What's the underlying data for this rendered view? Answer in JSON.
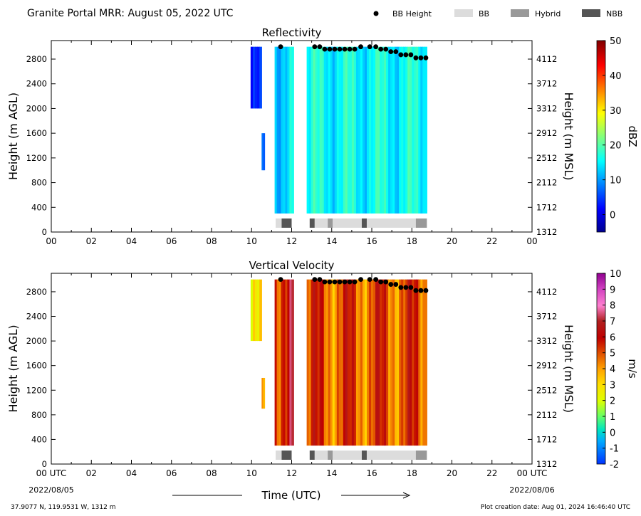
{
  "figure": {
    "title": "Granite Portal MRR:  August 05, 2022 UTC",
    "location": "37.9077 N, 119.9531 W, 1312 m",
    "creation_date": "Plot creation date: Aug 01, 2024 16:46:40 UTC",
    "xlabel": "Time (UTC)",
    "start_date": "2022/08/05",
    "end_date": "2022/08/06"
  },
  "legend": [
    {
      "label": "BB Height",
      "kind": "dot",
      "color": "#000000"
    },
    {
      "label": "BB",
      "kind": "box",
      "color": "#dcdcdc"
    },
    {
      "label": "Hybrid",
      "kind": "box",
      "color": "#999999"
    },
    {
      "label": "NBB",
      "kind": "box",
      "color": "#555555"
    }
  ],
  "chart_data": [
    {
      "type": "heatmap",
      "title": "Reflectivity",
      "xlabel": "",
      "ylabel": "Height (m AGL)",
      "ylabel_right": "Height (m MSL)",
      "xlim": [
        0,
        24
      ],
      "ylim": [
        0,
        3100
      ],
      "x_ticks": [
        "00",
        "02",
        "04",
        "06",
        "08",
        "10",
        "12",
        "14",
        "16",
        "18",
        "20",
        "22",
        "00"
      ],
      "y_ticks": [
        0,
        400,
        800,
        1200,
        1600,
        2000,
        2400,
        2800
      ],
      "y_ticks_right": [
        1312,
        1712,
        2112,
        2512,
        2912,
        3312,
        3712,
        4112
      ],
      "colorbar": {
        "label": "dBZ",
        "min": -5,
        "max": 50,
        "ticks": [
          0,
          10,
          20,
          30,
          40,
          50
        ],
        "colormap": "jet"
      },
      "bb_height_points": [
        [
          11.45,
          3000
        ],
        [
          13.15,
          3000
        ],
        [
          13.4,
          3000
        ],
        [
          13.65,
          2960
        ],
        [
          13.9,
          2960
        ],
        [
          14.15,
          2960
        ],
        [
          14.4,
          2960
        ],
        [
          14.65,
          2960
        ],
        [
          14.9,
          2960
        ],
        [
          15.15,
          2960
        ],
        [
          15.45,
          3000
        ],
        [
          15.9,
          3000
        ],
        [
          16.2,
          3000
        ],
        [
          16.45,
          2960
        ],
        [
          16.7,
          2960
        ],
        [
          16.95,
          2920
        ],
        [
          17.2,
          2920
        ],
        [
          17.45,
          2870
        ],
        [
          17.7,
          2870
        ],
        [
          17.95,
          2870
        ],
        [
          18.2,
          2820
        ],
        [
          18.45,
          2820
        ],
        [
          18.7,
          2820
        ]
      ],
      "bb_type_segments": [
        {
          "start": 11.2,
          "end": 11.5,
          "type": "BB"
        },
        {
          "start": 11.5,
          "end": 12.0,
          "type": "NBB"
        },
        {
          "start": 12.9,
          "end": 13.15,
          "type": "NBB"
        },
        {
          "start": 13.15,
          "end": 13.8,
          "type": "BB"
        },
        {
          "start": 13.8,
          "end": 14.05,
          "type": "Hybrid"
        },
        {
          "start": 14.05,
          "end": 15.5,
          "type": "BB"
        },
        {
          "start": 15.5,
          "end": 15.75,
          "type": "NBB"
        },
        {
          "start": 15.75,
          "end": 18.2,
          "type": "BB"
        },
        {
          "start": 18.2,
          "end": 18.75,
          "type": "Hybrid"
        }
      ],
      "echo_regions": [
        {
          "start": 9.95,
          "end": 10.5,
          "bottom": 2000,
          "top": 3000,
          "value": 2
        },
        {
          "start": 10.5,
          "end": 10.65,
          "bottom": 1000,
          "top": 1600,
          "value": 4
        },
        {
          "start": 11.15,
          "end": 12.1,
          "bottom": 300,
          "top": 3000,
          "value": 14
        },
        {
          "start": 12.75,
          "end": 18.75,
          "bottom": 300,
          "top": 3000,
          "value": 16
        }
      ]
    },
    {
      "type": "heatmap",
      "title": "Vertical Velocity",
      "xlabel": "",
      "ylabel": "Height (m AGL)",
      "ylabel_right": "Height (m MSL)",
      "xlim": [
        0,
        24
      ],
      "ylim": [
        0,
        3100
      ],
      "x_ticks": [
        "00 UTC",
        "02",
        "04",
        "06",
        "08",
        "10",
        "12",
        "14",
        "16",
        "18",
        "20",
        "22",
        "00 UTC"
      ],
      "y_ticks": [
        0,
        400,
        800,
        1200,
        1600,
        2000,
        2400,
        2800
      ],
      "y_ticks_right": [
        1312,
        1712,
        2112,
        2512,
        2912,
        3312,
        3712,
        4112
      ],
      "colorbar": {
        "label": "m/s",
        "min": -2,
        "max": 10,
        "ticks": [
          -2,
          -1,
          0,
          1,
          2,
          3,
          4,
          5,
          6,
          7,
          8,
          9,
          10
        ],
        "colormap": "velocity"
      },
      "bb_height_points": [
        [
          11.45,
          3000
        ],
        [
          13.15,
          3000
        ],
        [
          13.4,
          3000
        ],
        [
          13.65,
          2960
        ],
        [
          13.9,
          2960
        ],
        [
          14.15,
          2960
        ],
        [
          14.4,
          2960
        ],
        [
          14.65,
          2960
        ],
        [
          14.9,
          2960
        ],
        [
          15.15,
          2960
        ],
        [
          15.45,
          3000
        ],
        [
          15.9,
          3000
        ],
        [
          16.2,
          3000
        ],
        [
          16.45,
          2960
        ],
        [
          16.7,
          2960
        ],
        [
          16.95,
          2920
        ],
        [
          17.2,
          2920
        ],
        [
          17.45,
          2870
        ],
        [
          17.7,
          2870
        ],
        [
          17.95,
          2870
        ],
        [
          18.2,
          2820
        ],
        [
          18.45,
          2820
        ],
        [
          18.7,
          2820
        ]
      ],
      "bb_type_segments": [
        {
          "start": 11.2,
          "end": 11.5,
          "type": "BB"
        },
        {
          "start": 11.5,
          "end": 12.0,
          "type": "NBB"
        },
        {
          "start": 12.9,
          "end": 13.15,
          "type": "NBB"
        },
        {
          "start": 13.15,
          "end": 13.8,
          "type": "BB"
        },
        {
          "start": 13.8,
          "end": 14.05,
          "type": "Hybrid"
        },
        {
          "start": 14.05,
          "end": 15.5,
          "type": "BB"
        },
        {
          "start": 15.5,
          "end": 15.75,
          "type": "NBB"
        },
        {
          "start": 15.75,
          "end": 18.2,
          "type": "BB"
        },
        {
          "start": 18.2,
          "end": 18.75,
          "type": "Hybrid"
        }
      ],
      "echo_regions": [
        {
          "start": 9.95,
          "end": 10.5,
          "bottom": 2000,
          "top": 3000,
          "value": 2
        },
        {
          "start": 10.5,
          "end": 10.65,
          "bottom": 900,
          "top": 1400,
          "value": 2.5
        },
        {
          "start": 11.15,
          "end": 12.1,
          "bottom": 300,
          "top": 3000,
          "value": 6
        },
        {
          "start": 12.75,
          "end": 18.75,
          "bottom": 300,
          "top": 3000,
          "value": 5
        }
      ]
    }
  ]
}
